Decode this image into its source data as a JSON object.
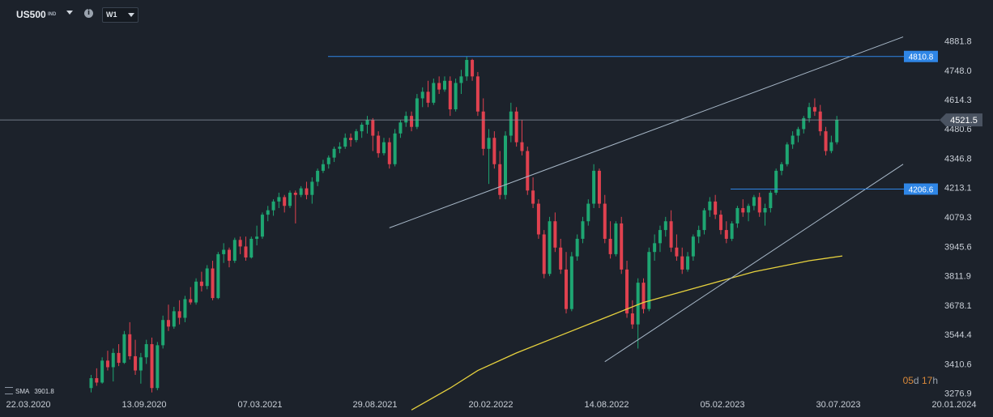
{
  "header": {
    "symbol": "US500",
    "symbol_type": "IND",
    "info_icon": "info-icon",
    "timeframe": "W1"
  },
  "indicator": {
    "name": "SMA",
    "value": "3901.8"
  },
  "countdown": {
    "days": "05",
    "days_unit": "d",
    "hours": "17",
    "hours_unit": "h"
  },
  "colors": {
    "background": "#1c222b",
    "up": "#1ea672",
    "down": "#e0414f",
    "level_line": "#2f86e6",
    "trend_line": "#a8b8c8",
    "sma": "#e7d23e",
    "price_line": "#8c97a3"
  },
  "chart_data": {
    "type": "candlestick",
    "timeframe": "W1",
    "x_tick_labels": [
      "22.03.2020",
      "13.09.2020",
      "07.03.2021",
      "29.08.2021",
      "20.02.2022",
      "14.08.2022",
      "05.02.2023",
      "30.07.2023",
      "20.01.2024"
    ],
    "y_tick_labels": [
      "4881.8",
      "4748.0",
      "4614.3",
      "4480.6",
      "4346.8",
      "4213.1",
      "4079.3",
      "3945.6",
      "3811.9",
      "3678.1",
      "3544.4",
      "3410.6",
      "3276.9"
    ],
    "ylim": [
      3276.9,
      4881.8
    ],
    "current_price": "4521.5",
    "levels": [
      {
        "value": 4810.8,
        "label": "4810.8"
      },
      {
        "value": 4206.6,
        "label": "4206.6"
      }
    ],
    "candles": [
      [
        3300,
        3360,
        3280,
        3345
      ],
      [
        3345,
        3390,
        3310,
        3325
      ],
      [
        3325,
        3440,
        3320,
        3425
      ],
      [
        3425,
        3470,
        3380,
        3395
      ],
      [
        3395,
        3480,
        3330,
        3460
      ],
      [
        3460,
        3500,
        3400,
        3415
      ],
      [
        3415,
        3560,
        3410,
        3545
      ],
      [
        3545,
        3600,
        3430,
        3445
      ],
      [
        3445,
        3520,
        3360,
        3380
      ],
      [
        3380,
        3460,
        3320,
        3440
      ],
      [
        3440,
        3520,
        3410,
        3500
      ],
      [
        3500,
        3530,
        3280,
        3300
      ],
      [
        3300,
        3510,
        3290,
        3495
      ],
      [
        3495,
        3630,
        3480,
        3610
      ],
      [
        3610,
        3680,
        3560,
        3580
      ],
      [
        3580,
        3670,
        3570,
        3650
      ],
      [
        3650,
        3700,
        3590,
        3620
      ],
      [
        3620,
        3720,
        3600,
        3705
      ],
      [
        3705,
        3760,
        3680,
        3690
      ],
      [
        3690,
        3800,
        3680,
        3785
      ],
      [
        3785,
        3830,
        3740,
        3765
      ],
      [
        3765,
        3860,
        3750,
        3845
      ],
      [
        3845,
        3880,
        3700,
        3710
      ],
      [
        3710,
        3920,
        3705,
        3910
      ],
      [
        3910,
        3960,
        3870,
        3930
      ],
      [
        3930,
        3940,
        3850,
        3880
      ],
      [
        3880,
        3985,
        3870,
        3975
      ],
      [
        3975,
        3990,
        3910,
        3945
      ],
      [
        3945,
        3990,
        3880,
        3895
      ],
      [
        3895,
        3990,
        3890,
        3980
      ],
      [
        3980,
        4040,
        3950,
        3990
      ],
      [
        3990,
        4100,
        3980,
        4090
      ],
      [
        4090,
        4130,
        4060,
        4110
      ],
      [
        4110,
        4160,
        4085,
        4150
      ],
      [
        4150,
        4190,
        4120,
        4170
      ],
      [
        4170,
        4180,
        4100,
        4130
      ],
      [
        4130,
        4200,
        4120,
        4190
      ],
      [
        4190,
        4200,
        4050,
        4180
      ],
      [
        4180,
        4220,
        4170,
        4210
      ],
      [
        4210,
        4240,
        4160,
        4180
      ],
      [
        4180,
        4260,
        4140,
        4240
      ],
      [
        4240,
        4300,
        4220,
        4290
      ],
      [
        4290,
        4340,
        4280,
        4320
      ],
      [
        4320,
        4360,
        4300,
        4350
      ],
      [
        4350,
        4400,
        4330,
        4390
      ],
      [
        4390,
        4420,
        4370,
        4400
      ],
      [
        4400,
        4460,
        4390,
        4440
      ],
      [
        4440,
        4460,
        4400,
        4430
      ],
      [
        4430,
        4480,
        4420,
        4470
      ],
      [
        4470,
        4510,
        4440,
        4500
      ],
      [
        4500,
        4540,
        4460,
        4520
      ],
      [
        4520,
        4530,
        4380,
        4450
      ],
      [
        4450,
        4470,
        4350,
        4370
      ],
      [
        4370,
        4440,
        4360,
        4420
      ],
      [
        4420,
        4440,
        4300,
        4320
      ],
      [
        4320,
        4480,
        4310,
        4460
      ],
      [
        4460,
        4520,
        4440,
        4510
      ],
      [
        4510,
        4560,
        4490,
        4540
      ],
      [
        4540,
        4560,
        4470,
        4490
      ],
      [
        4490,
        4640,
        4480,
        4620
      ],
      [
        4620,
        4670,
        4580,
        4650
      ],
      [
        4650,
        4700,
        4580,
        4600
      ],
      [
        4600,
        4710,
        4590,
        4690
      ],
      [
        4690,
        4720,
        4640,
        4660
      ],
      [
        4660,
        4720,
        4650,
        4700
      ],
      [
        4700,
        4720,
        4540,
        4570
      ],
      [
        4570,
        4710,
        4560,
        4690
      ],
      [
        4690,
        4750,
        4640,
        4720
      ],
      [
        4720,
        4810,
        4700,
        4795
      ],
      [
        4795,
        4800,
        4700,
        4720
      ],
      [
        4720,
        4740,
        4540,
        4560
      ],
      [
        4560,
        4620,
        4360,
        4390
      ],
      [
        4390,
        4480,
        4230,
        4440
      ],
      [
        4440,
        4470,
        4300,
        4320
      ],
      [
        4320,
        4380,
        4160,
        4180
      ],
      [
        4180,
        4470,
        4160,
        4450
      ],
      [
        4450,
        4600,
        4420,
        4560
      ],
      [
        4560,
        4580,
        4400,
        4420
      ],
      [
        4420,
        4520,
        4360,
        4380
      ],
      [
        4380,
        4400,
        4180,
        4200
      ],
      [
        4200,
        4260,
        4120,
        4140
      ],
      [
        4140,
        4160,
        3980,
        4000
      ],
      [
        4000,
        4020,
        3800,
        3820
      ],
      [
        3820,
        4080,
        3810,
        4060
      ],
      [
        4060,
        4100,
        3920,
        3940
      ],
      [
        3940,
        3980,
        3820,
        3840
      ],
      [
        3840,
        3920,
        3640,
        3660
      ],
      [
        3660,
        3920,
        3650,
        3900
      ],
      [
        3900,
        4000,
        3880,
        3980
      ],
      [
        3980,
        4080,
        3960,
        4060
      ],
      [
        4060,
        4160,
        4040,
        4140
      ],
      [
        4140,
        4320,
        4120,
        4290
      ],
      [
        4290,
        4300,
        4120,
        4140
      ],
      [
        4140,
        4180,
        3960,
        3980
      ],
      [
        3980,
        4060,
        3890,
        3910
      ],
      [
        3910,
        4060,
        3900,
        4050
      ],
      [
        4050,
        4080,
        3820,
        3840
      ],
      [
        3840,
        3880,
        3620,
        3640
      ],
      [
        3640,
        3700,
        3570,
        3590
      ],
      [
        3590,
        3800,
        3480,
        3780
      ],
      [
        3780,
        3800,
        3640,
        3660
      ],
      [
        3660,
        3940,
        3650,
        3920
      ],
      [
        3920,
        4000,
        3880,
        3960
      ],
      [
        3960,
        4040,
        3920,
        4020
      ],
      [
        4020,
        4080,
        3990,
        4060
      ],
      [
        4060,
        4110,
        3920,
        3940
      ],
      [
        3940,
        4000,
        3880,
        3900
      ],
      [
        3900,
        3940,
        3820,
        3840
      ],
      [
        3840,
        3920,
        3830,
        3900
      ],
      [
        3900,
        4000,
        3880,
        3990
      ],
      [
        3990,
        4040,
        3960,
        4020
      ],
      [
        4020,
        4120,
        4000,
        4110
      ],
      [
        4110,
        4170,
        4080,
        4150
      ],
      [
        4150,
        4180,
        4070,
        4090
      ],
      [
        4090,
        4110,
        4000,
        4020
      ],
      [
        4020,
        4060,
        3960,
        3980
      ],
      [
        3980,
        4060,
        3970,
        4050
      ],
      [
        4050,
        4130,
        4030,
        4120
      ],
      [
        4120,
        4160,
        4080,
        4100
      ],
      [
        4100,
        4140,
        4060,
        4130
      ],
      [
        4130,
        4180,
        4110,
        4170
      ],
      [
        4170,
        4190,
        4080,
        4100
      ],
      [
        4100,
        4140,
        4040,
        4120
      ],
      [
        4120,
        4200,
        4100,
        4190
      ],
      [
        4190,
        4300,
        4180,
        4290
      ],
      [
        4290,
        4330,
        4270,
        4320
      ],
      [
        4320,
        4420,
        4310,
        4410
      ],
      [
        4410,
        4470,
        4390,
        4450
      ],
      [
        4450,
        4490,
        4420,
        4480
      ],
      [
        4480,
        4540,
        4460,
        4530
      ],
      [
        4530,
        4600,
        4510,
        4580
      ],
      [
        4580,
        4620,
        4540,
        4560
      ],
      [
        4560,
        4590,
        4450,
        4470
      ],
      [
        4470,
        4490,
        4360,
        4380
      ],
      [
        4380,
        4450,
        4370,
        4420
      ],
      [
        4420,
        4540,
        4410,
        4521.5
      ]
    ],
    "sma_series": {
      "name": "SMA",
      "last_value": 3901.8,
      "points": [
        [
          58,
          3200
        ],
        [
          65,
          3300
        ],
        [
          70,
          3380
        ],
        [
          77,
          3460
        ],
        [
          85,
          3540
        ],
        [
          93,
          3620
        ],
        [
          100,
          3690
        ],
        [
          110,
          3760
        ],
        [
          120,
          3830
        ],
        [
          130,
          3880
        ],
        [
          136,
          3901.8
        ]
      ]
    }
  }
}
